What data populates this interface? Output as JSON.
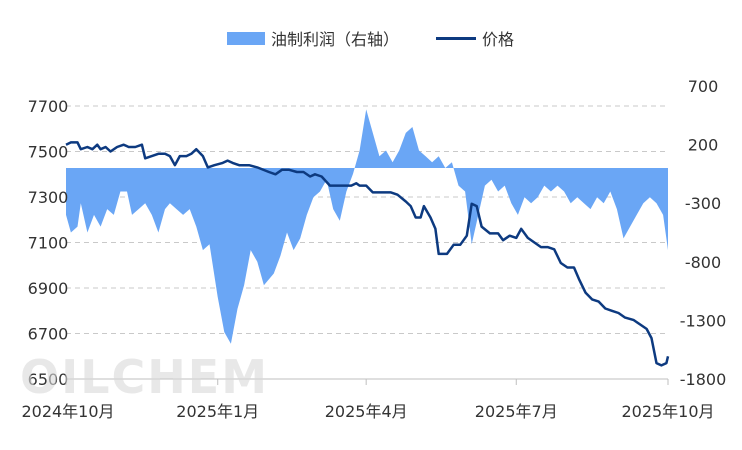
{
  "watermark": "OILCHEM",
  "chart_data": {
    "type": "line",
    "legend": {
      "placement": "top-center",
      "items": [
        {
          "key": "profit",
          "label": "油制利润（右轴）",
          "kind": "area",
          "color": "#6aa6f5"
        },
        {
          "key": "price",
          "label": "价格",
          "kind": "line",
          "color": "#0d3a80"
        }
      ]
    },
    "x_axis": {
      "type": "date",
      "range": [
        "2024-10-01",
        "2025-10-01"
      ],
      "ticks": [
        {
          "date": "2024-10-01",
          "label": "2024年10月"
        },
        {
          "date": "2025-01-01",
          "label": "2025年1月"
        },
        {
          "date": "2025-04-01",
          "label": "2025年4月"
        },
        {
          "date": "2025-07-01",
          "label": "2025年7月"
        },
        {
          "date": "2025-10-01",
          "label": "2025年10月"
        }
      ]
    },
    "y_left": {
      "range": [
        6500,
        7700
      ],
      "ticks": [
        {
          "value": 6500,
          "label": "6500"
        },
        {
          "value": 6700,
          "label": "6700"
        },
        {
          "value": 6900,
          "label": "6900"
        },
        {
          "value": 7100,
          "label": "7100"
        },
        {
          "value": 7300,
          "label": "7300"
        },
        {
          "value": 7500,
          "label": "7500"
        },
        {
          "value": 7700,
          "label": "7700"
        }
      ]
    },
    "y_right": {
      "range": [
        -1800,
        700
      ],
      "ticks": [
        {
          "value": -1800,
          "label": "-1800"
        },
        {
          "value": -1300,
          "label": "-1300"
        },
        {
          "value": -800,
          "label": "-800"
        },
        {
          "value": -300,
          "label": "-300"
        },
        {
          "value": 200,
          "label": "200"
        },
        {
          "value": 700,
          "label": "700"
        }
      ]
    },
    "grid": "horizontal-dashed",
    "series": [
      {
        "name": "价格",
        "axis": "left",
        "points": [
          [
            "2024-10-01",
            7530
          ],
          [
            "2024-10-04",
            7540
          ],
          [
            "2024-10-08",
            7540
          ],
          [
            "2024-10-10",
            7510
          ],
          [
            "2024-10-14",
            7520
          ],
          [
            "2024-10-17",
            7510
          ],
          [
            "2024-10-20",
            7530
          ],
          [
            "2024-10-22",
            7510
          ],
          [
            "2024-10-25",
            7520
          ],
          [
            "2024-10-28",
            7500
          ],
          [
            "2024-11-01",
            7520
          ],
          [
            "2024-11-05",
            7530
          ],
          [
            "2024-11-08",
            7520
          ],
          [
            "2024-11-12",
            7520
          ],
          [
            "2024-11-16",
            7530
          ],
          [
            "2024-11-18",
            7470
          ],
          [
            "2024-11-22",
            7480
          ],
          [
            "2024-11-26",
            7490
          ],
          [
            "2024-11-30",
            7490
          ],
          [
            "2024-12-03",
            7480
          ],
          [
            "2024-12-06",
            7440
          ],
          [
            "2024-12-09",
            7480
          ],
          [
            "2024-12-13",
            7480
          ],
          [
            "2024-12-16",
            7490
          ],
          [
            "2024-12-19",
            7510
          ],
          [
            "2024-12-23",
            7480
          ],
          [
            "2024-12-26",
            7430
          ],
          [
            "2024-12-30",
            7440
          ],
          [
            "2025-01-04",
            7450
          ],
          [
            "2025-01-07",
            7460
          ],
          [
            "2025-01-10",
            7450
          ],
          [
            "2025-01-14",
            7440
          ],
          [
            "2025-01-20",
            7440
          ],
          [
            "2025-01-25",
            7430
          ],
          [
            "2025-02-01",
            7410
          ],
          [
            "2025-02-05",
            7400
          ],
          [
            "2025-02-09",
            7420
          ],
          [
            "2025-02-13",
            7420
          ],
          [
            "2025-02-18",
            7410
          ],
          [
            "2025-02-22",
            7410
          ],
          [
            "2025-02-26",
            7390
          ],
          [
            "2025-03-01",
            7400
          ],
          [
            "2025-03-05",
            7390
          ],
          [
            "2025-03-10",
            7350
          ],
          [
            "2025-03-14",
            7350
          ],
          [
            "2025-03-19",
            7350
          ],
          [
            "2025-03-23",
            7350
          ],
          [
            "2025-03-26",
            7360
          ],
          [
            "2025-03-28",
            7350
          ],
          [
            "2025-04-01",
            7350
          ],
          [
            "2025-04-05",
            7320
          ],
          [
            "2025-04-10",
            7320
          ],
          [
            "2025-04-16",
            7320
          ],
          [
            "2025-04-20",
            7310
          ],
          [
            "2025-04-25",
            7280
          ],
          [
            "2025-04-28",
            7260
          ],
          [
            "2025-05-01",
            7210
          ],
          [
            "2025-05-04",
            7210
          ],
          [
            "2025-05-06",
            7260
          ],
          [
            "2025-05-10",
            7210
          ],
          [
            "2025-05-13",
            7160
          ],
          [
            "2025-05-15",
            7050
          ],
          [
            "2025-05-20",
            7050
          ],
          [
            "2025-05-24",
            7090
          ],
          [
            "2025-05-28",
            7090
          ],
          [
            "2025-06-01",
            7130
          ],
          [
            "2025-06-04",
            7270
          ],
          [
            "2025-06-07",
            7260
          ],
          [
            "2025-06-10",
            7170
          ],
          [
            "2025-06-15",
            7140
          ],
          [
            "2025-06-20",
            7140
          ],
          [
            "2025-06-23",
            7110
          ],
          [
            "2025-06-27",
            7130
          ],
          [
            "2025-07-01",
            7120
          ],
          [
            "2025-07-04",
            7160
          ],
          [
            "2025-07-08",
            7120
          ],
          [
            "2025-07-12",
            7100
          ],
          [
            "2025-07-16",
            7080
          ],
          [
            "2025-07-20",
            7080
          ],
          [
            "2025-07-24",
            7070
          ],
          [
            "2025-07-28",
            7010
          ],
          [
            "2025-08-01",
            6990
          ],
          [
            "2025-08-05",
            6990
          ],
          [
            "2025-08-08",
            6940
          ],
          [
            "2025-08-12",
            6880
          ],
          [
            "2025-08-16",
            6850
          ],
          [
            "2025-08-20",
            6840
          ],
          [
            "2025-08-24",
            6810
          ],
          [
            "2025-08-28",
            6800
          ],
          [
            "2025-09-01",
            6790
          ],
          [
            "2025-09-05",
            6770
          ],
          [
            "2025-09-10",
            6760
          ],
          [
            "2025-09-14",
            6740
          ],
          [
            "2025-09-18",
            6720
          ],
          [
            "2025-09-21",
            6680
          ],
          [
            "2025-09-24",
            6570
          ],
          [
            "2025-09-27",
            6560
          ],
          [
            "2025-09-30",
            6570
          ],
          [
            "2025-10-01",
            6600
          ]
        ]
      },
      {
        "name": "油制利润（右轴）",
        "axis": "right",
        "points": [
          [
            "2024-10-01",
            -400
          ],
          [
            "2024-10-04",
            -550
          ],
          [
            "2024-10-08",
            -500
          ],
          [
            "2024-10-10",
            -300
          ],
          [
            "2024-10-14",
            -550
          ],
          [
            "2024-10-18",
            -400
          ],
          [
            "2024-10-22",
            -500
          ],
          [
            "2024-10-26",
            -350
          ],
          [
            "2024-10-30",
            -400
          ],
          [
            "2024-11-03",
            -200
          ],
          [
            "2024-11-07",
            -200
          ],
          [
            "2024-11-10",
            -400
          ],
          [
            "2024-11-14",
            -350
          ],
          [
            "2024-11-18",
            -300
          ],
          [
            "2024-11-22",
            -400
          ],
          [
            "2024-11-26",
            -550
          ],
          [
            "2024-11-30",
            -350
          ],
          [
            "2024-12-03",
            -300
          ],
          [
            "2024-12-07",
            -350
          ],
          [
            "2024-12-11",
            -400
          ],
          [
            "2024-12-15",
            -350
          ],
          [
            "2024-12-19",
            -500
          ],
          [
            "2024-12-23",
            -700
          ],
          [
            "2024-12-27",
            -650
          ],
          [
            "2025-01-01",
            -1100
          ],
          [
            "2025-01-05",
            -1400
          ],
          [
            "2025-01-09",
            -1500
          ],
          [
            "2025-01-13",
            -1200
          ],
          [
            "2025-01-17",
            -1000
          ],
          [
            "2025-01-21",
            -700
          ],
          [
            "2025-01-25",
            -800
          ],
          [
            "2025-01-29",
            -1000
          ],
          [
            "2025-02-04",
            -900
          ],
          [
            "2025-02-08",
            -750
          ],
          [
            "2025-02-12",
            -550
          ],
          [
            "2025-02-16",
            -700
          ],
          [
            "2025-02-20",
            -600
          ],
          [
            "2025-02-24",
            -400
          ],
          [
            "2025-02-28",
            -250
          ],
          [
            "2025-03-04",
            -200
          ],
          [
            "2025-03-08",
            -100
          ],
          [
            "2025-03-12",
            -350
          ],
          [
            "2025-03-16",
            -450
          ],
          [
            "2025-03-20",
            -200
          ],
          [
            "2025-03-24",
            -50
          ],
          [
            "2025-03-28",
            150
          ],
          [
            "2025-04-01",
            500
          ],
          [
            "2025-04-05",
            300
          ],
          [
            "2025-04-09",
            100
          ],
          [
            "2025-04-13",
            150
          ],
          [
            "2025-04-17",
            50
          ],
          [
            "2025-04-21",
            150
          ],
          [
            "2025-04-25",
            300
          ],
          [
            "2025-04-29",
            350
          ],
          [
            "2025-05-03",
            150
          ],
          [
            "2025-05-07",
            100
          ],
          [
            "2025-05-11",
            50
          ],
          [
            "2025-05-15",
            100
          ],
          [
            "2025-05-19",
            0
          ],
          [
            "2025-05-23",
            50
          ],
          [
            "2025-05-27",
            -150
          ],
          [
            "2025-05-31",
            -200
          ],
          [
            "2025-06-04",
            -650
          ],
          [
            "2025-06-08",
            -400
          ],
          [
            "2025-06-12",
            -150
          ],
          [
            "2025-06-16",
            -100
          ],
          [
            "2025-06-20",
            -200
          ],
          [
            "2025-06-24",
            -150
          ],
          [
            "2025-06-28",
            -300
          ],
          [
            "2025-07-02",
            -400
          ],
          [
            "2025-07-06",
            -250
          ],
          [
            "2025-07-10",
            -300
          ],
          [
            "2025-07-14",
            -250
          ],
          [
            "2025-07-18",
            -150
          ],
          [
            "2025-07-22",
            -200
          ],
          [
            "2025-07-26",
            -150
          ],
          [
            "2025-07-30",
            -200
          ],
          [
            "2025-08-03",
            -300
          ],
          [
            "2025-08-07",
            -250
          ],
          [
            "2025-08-11",
            -300
          ],
          [
            "2025-08-15",
            -350
          ],
          [
            "2025-08-19",
            -250
          ],
          [
            "2025-08-23",
            -300
          ],
          [
            "2025-08-27",
            -200
          ],
          [
            "2025-08-31",
            -350
          ],
          [
            "2025-09-04",
            -600
          ],
          [
            "2025-09-08",
            -500
          ],
          [
            "2025-09-12",
            -400
          ],
          [
            "2025-09-16",
            -300
          ],
          [
            "2025-09-20",
            -250
          ],
          [
            "2025-09-24",
            -300
          ],
          [
            "2025-09-28",
            -400
          ],
          [
            "2025-10-01",
            -700
          ]
        ]
      }
    ]
  }
}
